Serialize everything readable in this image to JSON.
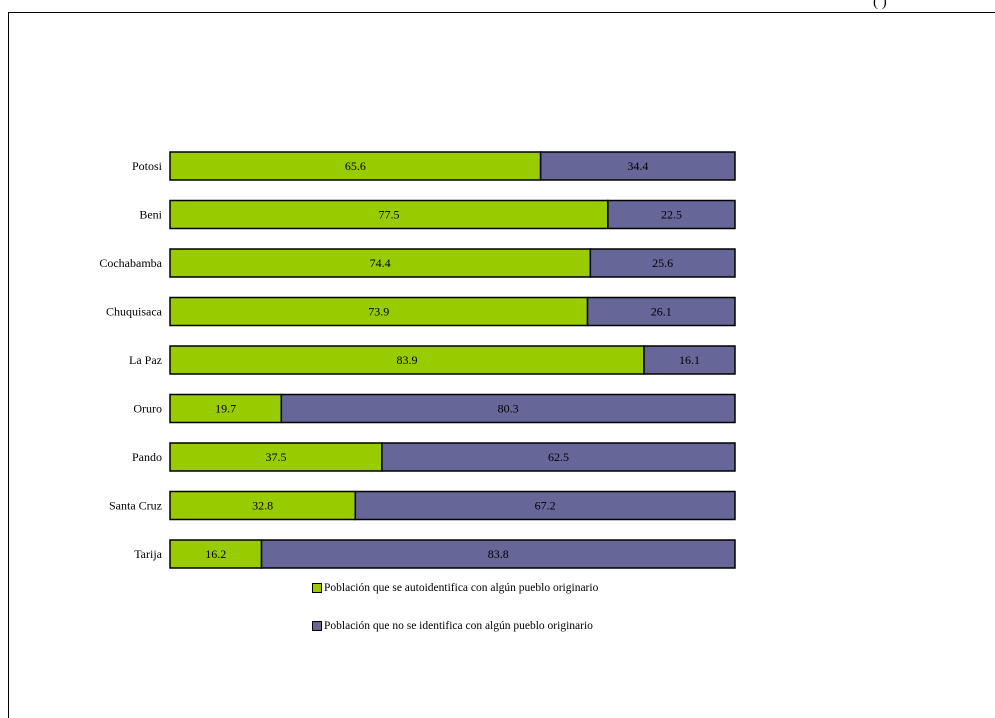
{
  "clipped_text": "(          )",
  "chart_data": {
    "type": "bar",
    "orientation": "horizontal",
    "stacked": true,
    "categories": [
      "Potosi",
      "Beni",
      "Cochabamba",
      "Chuquisaca",
      "La Paz",
      "Oruro",
      "Pando",
      "Santa Cruz",
      "Tarija"
    ],
    "series": [
      {
        "name": "Población que se autoidentifica con algún pueblo originario",
        "color": "#99cc00",
        "values": [
          65.6,
          77.5,
          74.4,
          73.9,
          83.9,
          19.7,
          37.5,
          32.8,
          16.2
        ],
        "labels": [
          "65.6",
          "77.5",
          "74.4",
          "73.9",
          "83.9",
          "19.7",
          "37.5",
          "32.8",
          "16.2"
        ]
      },
      {
        "name": "Población que no se identifica con algún pueblo originario",
        "color": "#666699",
        "values": [
          34.4,
          22.5,
          25.6,
          26.1,
          16.1,
          80.3,
          62.5,
          67.2,
          83.8
        ],
        "labels": [
          "34.4",
          "22.5",
          "25.6",
          "26.1",
          "16.1",
          "80.3",
          "62.5",
          "67.2",
          "83.8"
        ]
      }
    ],
    "xlim": [
      0,
      100
    ],
    "grid": false,
    "legend_position": "bottom"
  }
}
